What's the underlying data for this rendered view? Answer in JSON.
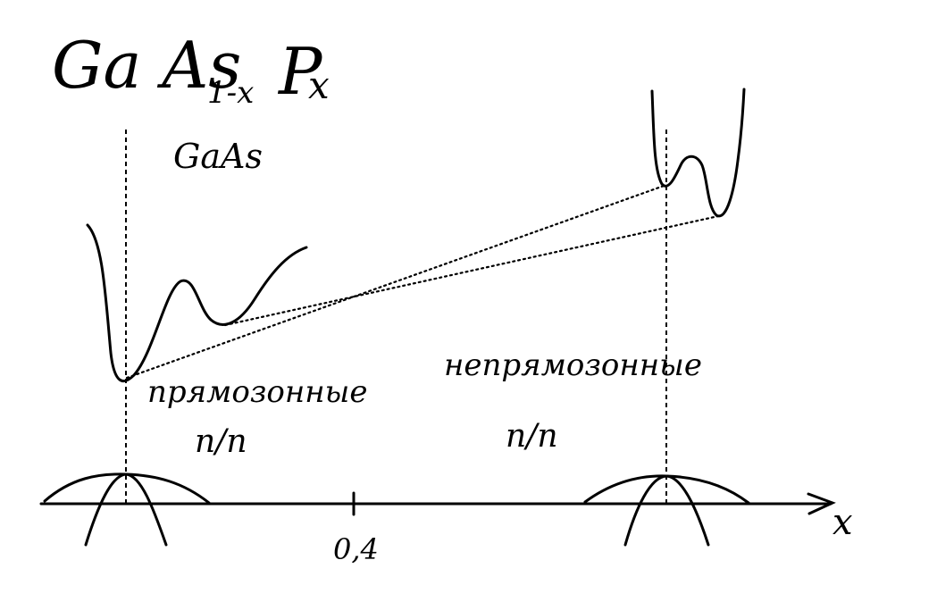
{
  "title": {
    "main": "Ga As",
    "subscript": "1-x",
    "suffix": "P",
    "suffix_subscript": "x"
  },
  "left_material": "GaAs",
  "axis": {
    "label": "x",
    "tick_label": "0,4"
  },
  "regions": {
    "direct": {
      "line1": "прямозонные",
      "line2": "п/п"
    },
    "indirect": {
      "line1": "непрямозонные",
      "line2": "п/п"
    }
  }
}
